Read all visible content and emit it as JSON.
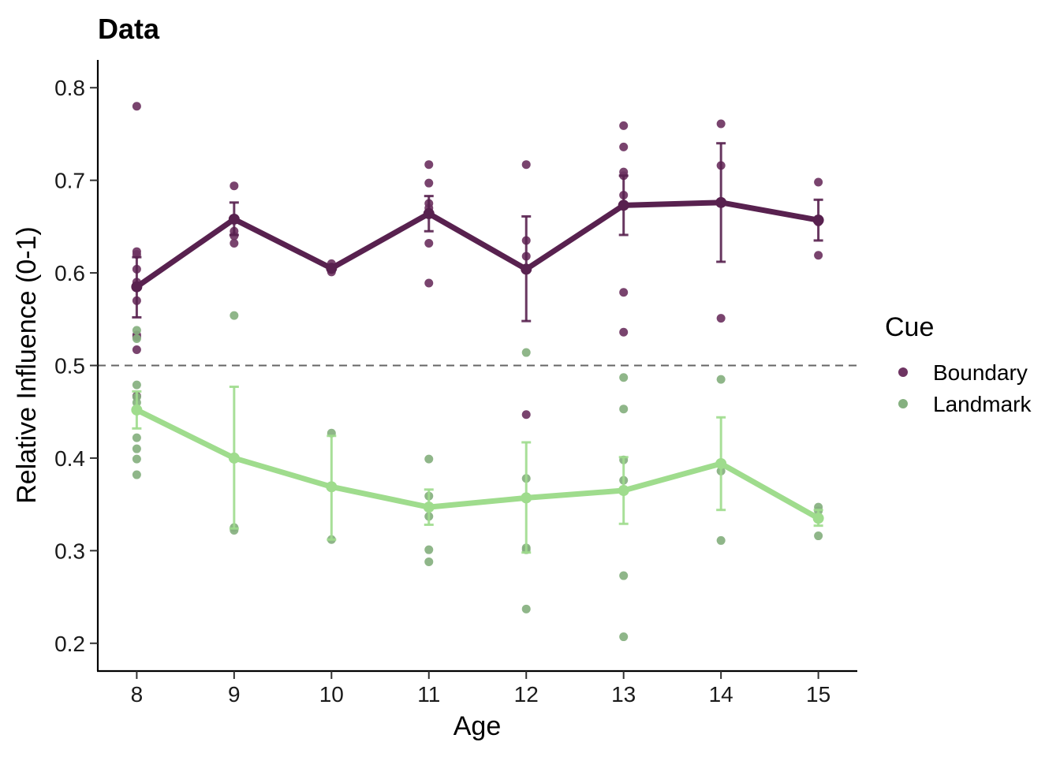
{
  "chart_data": {
    "type": "line",
    "title": "Data",
    "xlabel": "Age",
    "ylabel": "Relative Influence (0-1)",
    "x": [
      8,
      9,
      10,
      11,
      12,
      13,
      14,
      15
    ],
    "x_ticks": [
      "8",
      "9",
      "10",
      "11",
      "12",
      "13",
      "14",
      "15"
    ],
    "y_ticks": [
      "0.2",
      "0.3",
      "0.4",
      "0.5",
      "0.6",
      "0.7",
      "0.8"
    ],
    "xlim": [
      7.6,
      15.4
    ],
    "ylim": [
      0.17,
      0.83
    ],
    "grid": false,
    "reference_line": {
      "y": 0.5,
      "style": "dashed",
      "color": "#666666"
    },
    "legend": {
      "title": "Cue",
      "position": "right"
    },
    "series": [
      {
        "name": "Boundary",
        "line_color": "#58214f",
        "point_color": "#6e3462",
        "mean": [
          0.585,
          0.658,
          0.605,
          0.664,
          0.604,
          0.673,
          0.676,
          0.657
        ],
        "error_low": [
          0.552,
          0.641,
          0.605,
          0.645,
          0.548,
          0.641,
          0.612,
          0.635
        ],
        "error_high": [
          0.617,
          0.676,
          0.605,
          0.683,
          0.661,
          0.705,
          0.74,
          0.679
        ],
        "points": [
          [
            8,
            0.78
          ],
          [
            8,
            0.623
          ],
          [
            8,
            0.62
          ],
          [
            8,
            0.604
          ],
          [
            8,
            0.59
          ],
          [
            8,
            0.57
          ],
          [
            8,
            0.533
          ],
          [
            8,
            0.531
          ],
          [
            8,
            0.517
          ],
          [
            8,
            0.467
          ],
          [
            9,
            0.694
          ],
          [
            9,
            0.645
          ],
          [
            9,
            0.64
          ],
          [
            9,
            0.632
          ],
          [
            10,
            0.61
          ],
          [
            10,
            0.604
          ],
          [
            10,
            0.601
          ],
          [
            11,
            0.717
          ],
          [
            11,
            0.697
          ],
          [
            11,
            0.675
          ],
          [
            11,
            0.67
          ],
          [
            11,
            0.632
          ],
          [
            11,
            0.589
          ],
          [
            12,
            0.717
          ],
          [
            12,
            0.635
          ],
          [
            12,
            0.618
          ],
          [
            12,
            0.447
          ],
          [
            13,
            0.759
          ],
          [
            13,
            0.736
          ],
          [
            13,
            0.709
          ],
          [
            13,
            0.705
          ],
          [
            13,
            0.684
          ],
          [
            13,
            0.579
          ],
          [
            13,
            0.536
          ],
          [
            14,
            0.761
          ],
          [
            14,
            0.716
          ],
          [
            14,
            0.551
          ],
          [
            15,
            0.698
          ],
          [
            15,
            0.655
          ],
          [
            15,
            0.619
          ]
        ]
      },
      {
        "name": "Landmark",
        "line_color": "#9fdc8d",
        "point_color": "#85b07f",
        "mean": [
          0.452,
          0.4,
          0.369,
          0.347,
          0.357,
          0.365,
          0.394,
          0.335
        ],
        "error_low": [
          0.432,
          0.324,
          0.312,
          0.328,
          0.298,
          0.329,
          0.344,
          0.327
        ],
        "error_high": [
          0.472,
          0.477,
          0.424,
          0.366,
          0.417,
          0.401,
          0.444,
          0.344
        ],
        "points": [
          [
            8,
            0.538
          ],
          [
            8,
            0.529
          ],
          [
            8,
            0.479
          ],
          [
            8,
            0.466
          ],
          [
            8,
            0.46
          ],
          [
            8,
            0.422
          ],
          [
            8,
            0.41
          ],
          [
            8,
            0.399
          ],
          [
            8,
            0.382
          ],
          [
            9,
            0.554
          ],
          [
            9,
            0.325
          ],
          [
            9,
            0.322
          ],
          [
            10,
            0.427
          ],
          [
            10,
            0.312
          ],
          [
            11,
            0.399
          ],
          [
            11,
            0.359
          ],
          [
            11,
            0.337
          ],
          [
            11,
            0.301
          ],
          [
            11,
            0.288
          ],
          [
            12,
            0.514
          ],
          [
            12,
            0.378
          ],
          [
            12,
            0.303
          ],
          [
            12,
            0.301
          ],
          [
            12,
            0.237
          ],
          [
            13,
            0.487
          ],
          [
            13,
            0.453
          ],
          [
            13,
            0.398
          ],
          [
            13,
            0.376
          ],
          [
            13,
            0.364
          ],
          [
            13,
            0.273
          ],
          [
            13,
            0.207
          ],
          [
            14,
            0.485
          ],
          [
            14,
            0.386
          ],
          [
            14,
            0.311
          ],
          [
            15,
            0.347
          ],
          [
            15,
            0.343
          ],
          [
            15,
            0.316
          ]
        ]
      }
    ]
  }
}
